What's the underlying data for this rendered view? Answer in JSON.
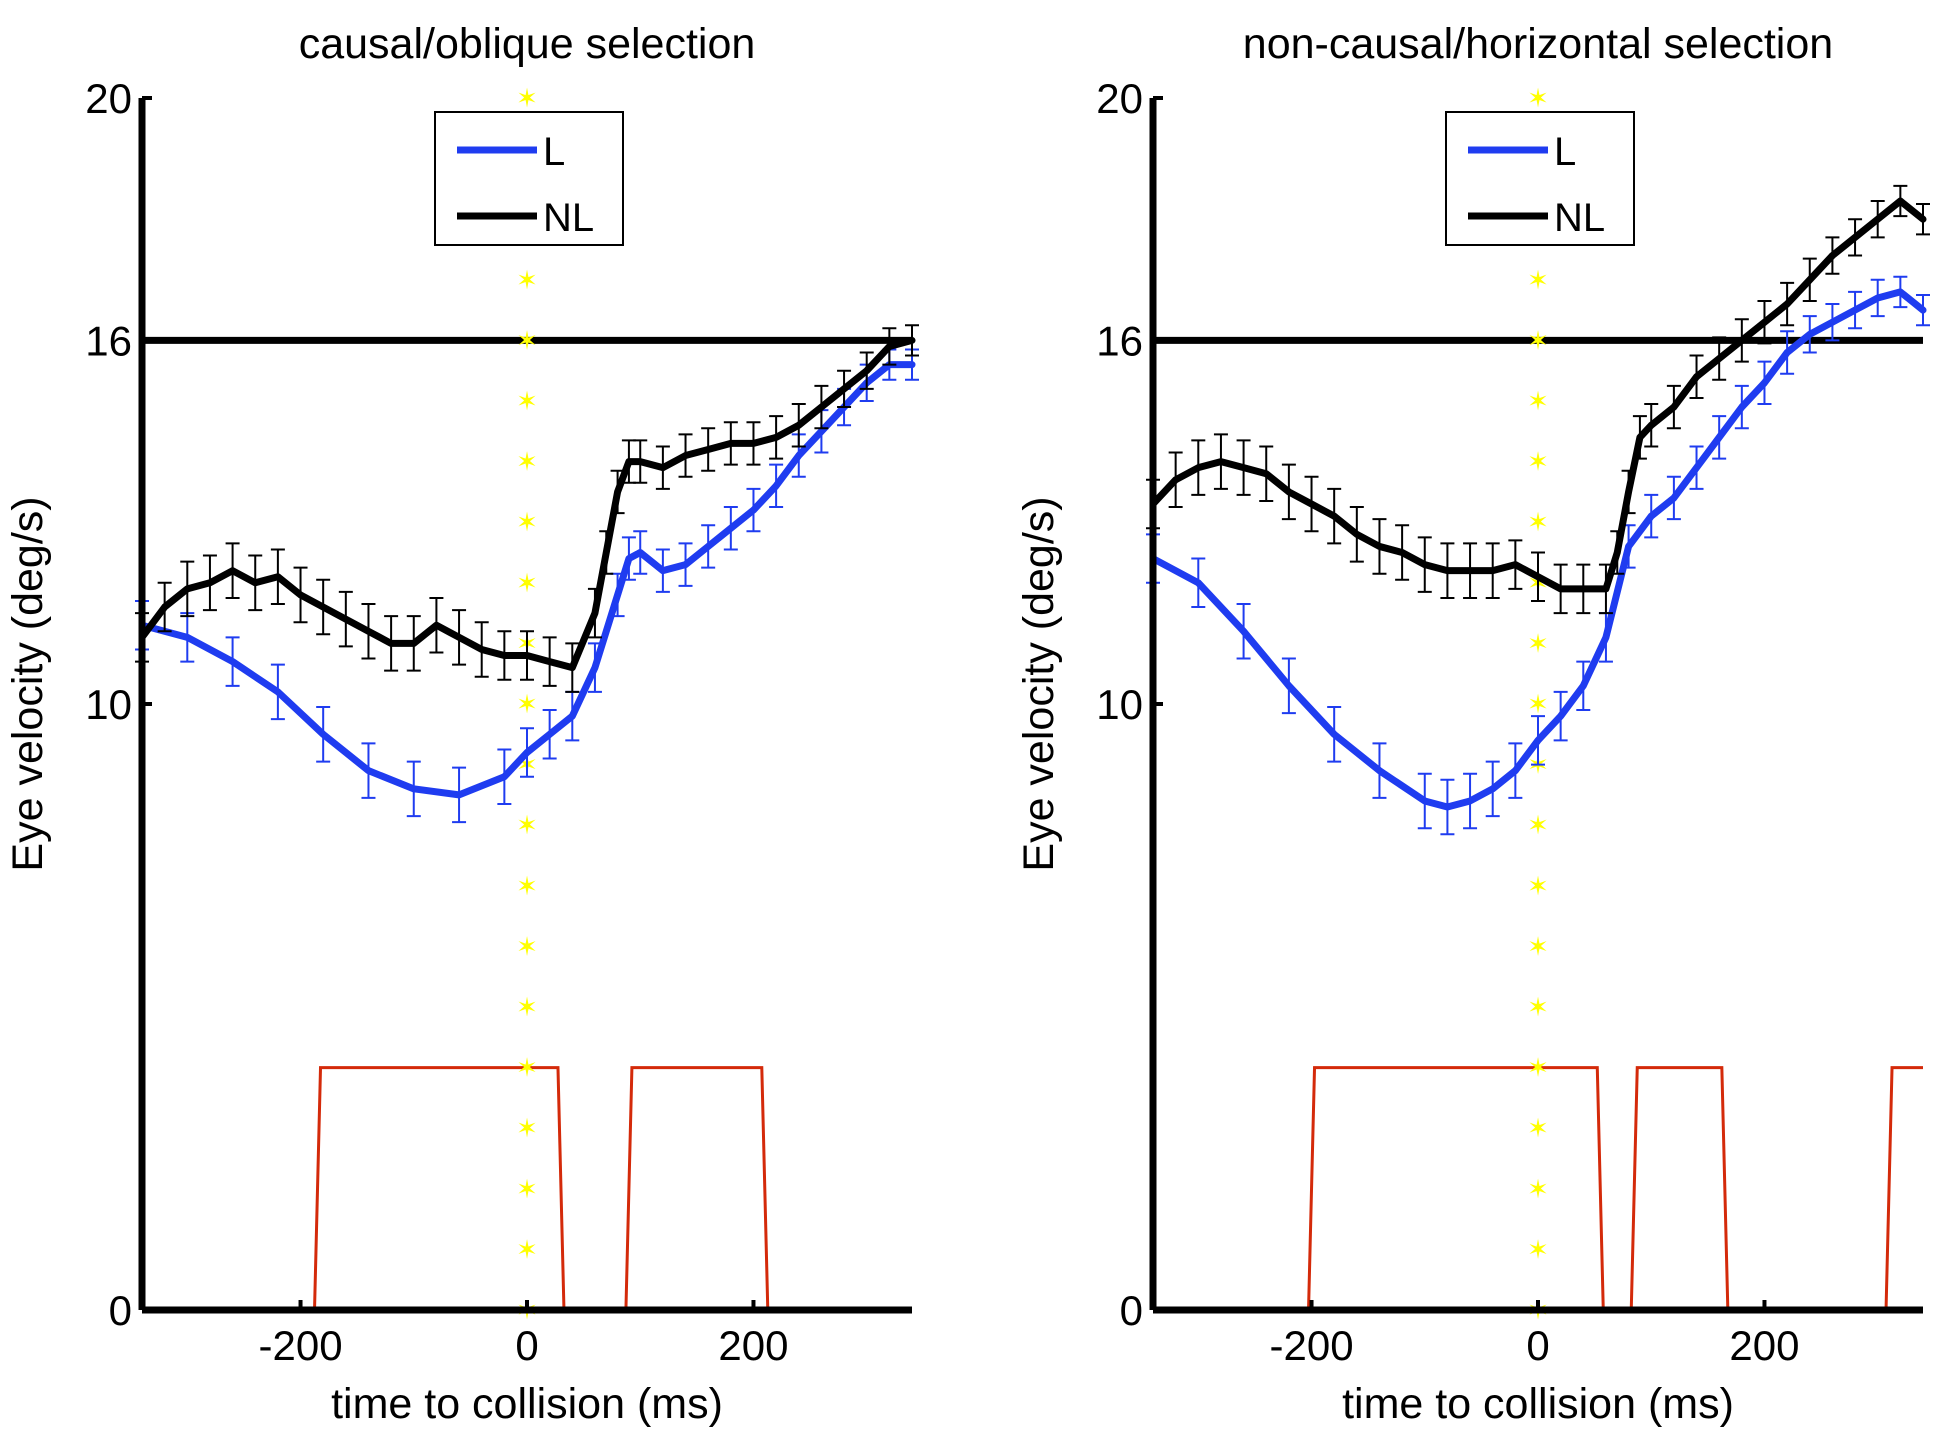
{
  "colors": {
    "l": "#1f3cf0",
    "nl": "#000000",
    "marker": "#ffff00",
    "step": "#d42a0a",
    "axis": "#000000"
  },
  "chart_data": [
    {
      "type": "line",
      "title": "causal/oblique selection",
      "xlabel": "time to collision (ms)",
      "ylabel": "Eye velocity (deg/s)",
      "xlim": [
        -340,
        340
      ],
      "ylim": [
        0,
        20
      ],
      "xticks": [
        -200,
        0,
        200
      ],
      "xtick_labels": [
        "-200",
        "0",
        "200"
      ],
      "yticks": [
        0,
        10,
        16,
        20
      ],
      "ytick_labels": [
        "0",
        "10",
        "16",
        "20"
      ],
      "legend": [
        "L",
        "NL"
      ],
      "legend_position": "top-center",
      "threshold": 16,
      "marker_line_x": 0,
      "series": [
        {
          "name": "L",
          "color_key": "l",
          "x": [
            -340,
            -300,
            -260,
            -220,
            -180,
            -140,
            -100,
            -60,
            -20,
            0,
            20,
            40,
            60,
            80,
            90,
            100,
            120,
            140,
            160,
            180,
            200,
            220,
            240,
            260,
            280,
            300,
            320,
            340
          ],
          "y": [
            11.3,
            11.1,
            10.7,
            10.2,
            9.5,
            8.9,
            8.6,
            8.5,
            8.8,
            9.2,
            9.5,
            9.8,
            10.6,
            11.8,
            12.4,
            12.5,
            12.2,
            12.3,
            12.6,
            12.9,
            13.2,
            13.6,
            14.1,
            14.5,
            14.9,
            15.3,
            15.6,
            15.6
          ],
          "err": [
            0.4,
            0.4,
            0.4,
            0.45,
            0.45,
            0.45,
            0.45,
            0.45,
            0.45,
            0.4,
            0.4,
            0.4,
            0.4,
            0.35,
            0.35,
            0.35,
            0.35,
            0.35,
            0.35,
            0.35,
            0.35,
            0.35,
            0.35,
            0.35,
            0.3,
            0.3,
            0.25,
            0.25
          ]
        },
        {
          "name": "NL",
          "color_key": "nl",
          "x": [
            -340,
            -320,
            -300,
            -280,
            -260,
            -240,
            -220,
            -200,
            -180,
            -160,
            -140,
            -120,
            -100,
            -80,
            -60,
            -40,
            -20,
            0,
            20,
            40,
            60,
            70,
            80,
            90,
            100,
            120,
            140,
            160,
            180,
            200,
            220,
            240,
            260,
            280,
            300,
            320,
            340
          ],
          "y": [
            11.1,
            11.6,
            11.9,
            12.0,
            12.2,
            12.0,
            12.1,
            11.8,
            11.6,
            11.4,
            11.2,
            11.0,
            11.0,
            11.3,
            11.1,
            10.9,
            10.8,
            10.8,
            10.7,
            10.6,
            11.5,
            12.5,
            13.5,
            14.0,
            14.0,
            13.9,
            14.1,
            14.2,
            14.3,
            14.3,
            14.4,
            14.6,
            14.9,
            15.2,
            15.5,
            15.9,
            16.0
          ],
          "err": [
            0.4,
            0.4,
            0.45,
            0.45,
            0.45,
            0.45,
            0.45,
            0.45,
            0.45,
            0.45,
            0.45,
            0.45,
            0.45,
            0.45,
            0.45,
            0.45,
            0.4,
            0.4,
            0.4,
            0.4,
            0.4,
            0.35,
            0.35,
            0.35,
            0.35,
            0.35,
            0.35,
            0.35,
            0.35,
            0.35,
            0.35,
            0.35,
            0.35,
            0.3,
            0.3,
            0.3,
            0.25
          ]
        }
      ],
      "step_signal": {
        "name": "step trace",
        "color_key": "step",
        "high": 4,
        "low": 0,
        "high_intervals": [
          [
            -185,
            30
          ],
          [
            90,
            210
          ]
        ]
      }
    },
    {
      "type": "line",
      "title": "non-causal/horizontal selection",
      "xlabel": "time to collision (ms)",
      "ylabel": "Eye velocity (deg/s)",
      "xlim": [
        -340,
        340
      ],
      "ylim": [
        0,
        20
      ],
      "xticks": [
        -200,
        0,
        200
      ],
      "xtick_labels": [
        "-200",
        "0",
        "200"
      ],
      "yticks": [
        0,
        10,
        16,
        20
      ],
      "ytick_labels": [
        "0",
        "10",
        "16",
        "20"
      ],
      "legend": [
        "L",
        "NL"
      ],
      "legend_position": "top-center",
      "threshold": 16,
      "marker_line_x": 0,
      "series": [
        {
          "name": "L",
          "color_key": "l",
          "x": [
            -340,
            -300,
            -260,
            -220,
            -180,
            -140,
            -100,
            -80,
            -60,
            -40,
            -20,
            0,
            20,
            40,
            60,
            80,
            100,
            120,
            140,
            160,
            180,
            200,
            220,
            240,
            260,
            280,
            300,
            320,
            340
          ],
          "y": [
            12.4,
            12.0,
            11.2,
            10.3,
            9.5,
            8.9,
            8.4,
            8.3,
            8.4,
            8.6,
            8.9,
            9.4,
            9.8,
            10.3,
            11.1,
            12.6,
            13.1,
            13.4,
            13.9,
            14.4,
            14.9,
            15.3,
            15.8,
            16.1,
            16.3,
            16.5,
            16.7,
            16.8,
            16.5
          ],
          "err": [
            0.4,
            0.4,
            0.45,
            0.45,
            0.45,
            0.45,
            0.45,
            0.45,
            0.45,
            0.45,
            0.45,
            0.4,
            0.4,
            0.4,
            0.4,
            0.35,
            0.35,
            0.35,
            0.35,
            0.35,
            0.35,
            0.35,
            0.35,
            0.3,
            0.3,
            0.3,
            0.3,
            0.25,
            0.25
          ]
        },
        {
          "name": "NL",
          "color_key": "nl",
          "x": [
            -340,
            -320,
            -300,
            -280,
            -260,
            -240,
            -220,
            -200,
            -180,
            -160,
            -140,
            -120,
            -100,
            -80,
            -60,
            -40,
            -20,
            0,
            20,
            40,
            60,
            70,
            80,
            90,
            100,
            120,
            140,
            160,
            180,
            200,
            220,
            240,
            260,
            280,
            300,
            320,
            340
          ],
          "y": [
            13.3,
            13.7,
            13.9,
            14.0,
            13.9,
            13.8,
            13.5,
            13.3,
            13.1,
            12.8,
            12.6,
            12.5,
            12.3,
            12.2,
            12.2,
            12.2,
            12.3,
            12.1,
            11.9,
            11.9,
            11.9,
            12.5,
            13.5,
            14.4,
            14.6,
            14.9,
            15.4,
            15.7,
            16.0,
            16.3,
            16.6,
            17.0,
            17.4,
            17.7,
            18.0,
            18.3,
            18.0
          ],
          "err": [
            0.4,
            0.45,
            0.45,
            0.45,
            0.45,
            0.45,
            0.45,
            0.45,
            0.45,
            0.45,
            0.45,
            0.45,
            0.45,
            0.45,
            0.45,
            0.45,
            0.4,
            0.4,
            0.4,
            0.4,
            0.4,
            0.35,
            0.35,
            0.35,
            0.35,
            0.35,
            0.35,
            0.35,
            0.35,
            0.35,
            0.35,
            0.35,
            0.3,
            0.3,
            0.3,
            0.25,
            0.25
          ]
        }
      ],
      "step_signal": {
        "name": "step trace",
        "color_key": "step",
        "high": 4,
        "low": 0,
        "high_intervals": [
          [
            -200,
            55
          ],
          [
            85,
            165
          ],
          [
            310,
            340
          ]
        ]
      }
    }
  ]
}
